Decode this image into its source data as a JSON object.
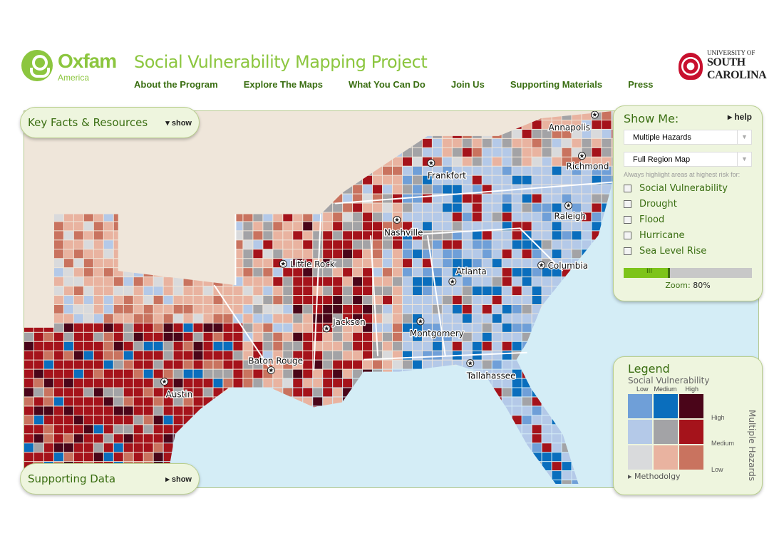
{
  "header": {
    "brand": "Oxfam",
    "brand_sub": "America",
    "title": "Social Vulnerability Mapping Project",
    "nav": [
      "About the Program",
      "Explore The Maps",
      "What You Can Do",
      "Join Us",
      "Supporting Materials",
      "Press"
    ],
    "partner_small": "UNIVERSITY OF",
    "partner_big1": "SOUTH",
    "partner_big2": "CAROLINA"
  },
  "key_facts": {
    "title": "Key Facts & Resources",
    "toggle": "show"
  },
  "supporting_data": {
    "title": "Supporting Data",
    "toggle": "show"
  },
  "show_me": {
    "title": "Show Me:",
    "help": "help",
    "hazard_select": "Multiple Hazards",
    "area_select": "Full Region Map",
    "hint": "Always highlight areas at highest risk for:",
    "checkboxes": [
      {
        "label": "Social Vulnerability",
        "checked": false
      },
      {
        "label": "Drought",
        "checked": false
      },
      {
        "label": "Flood",
        "checked": false
      },
      {
        "label": "Hurricane",
        "checked": false
      },
      {
        "label": "Sea Level Rise",
        "checked": false
      }
    ],
    "zoom_label": "Zoom:",
    "zoom_value": "80%",
    "zoom_percent": 80
  },
  "legend": {
    "title": "Legend",
    "x_title": "Social Vulnerability",
    "x_levels": [
      "Low",
      "Medium",
      "High"
    ],
    "y_title": "Multiple Hazards",
    "y_levels": [
      "High",
      "Medium",
      "Low"
    ],
    "colors": [
      [
        "#6f9fd8",
        "#0a6ebd",
        "#4a0519"
      ],
      [
        "#b4c9e8",
        "#a3a3a6",
        "#a5131b"
      ],
      [
        "#d9dadc",
        "#e9b3a0",
        "#c9735f"
      ]
    ],
    "methodology": "Methodolgy"
  },
  "map": {
    "cities": [
      {
        "name": "Annapolis"
      },
      {
        "name": "Richmond"
      },
      {
        "name": "Frankfort"
      },
      {
        "name": "Raleigh"
      },
      {
        "name": "Nashville"
      },
      {
        "name": "Little Rock"
      },
      {
        "name": "Atlanta"
      },
      {
        "name": "Columbia"
      },
      {
        "name": "Jackson"
      },
      {
        "name": "Montgomery"
      },
      {
        "name": "Baton Rouge"
      },
      {
        "name": "Tallahassee"
      },
      {
        "name": "Austin"
      }
    ],
    "land_color": "#efe6da",
    "water_color": "#d4edf6"
  }
}
